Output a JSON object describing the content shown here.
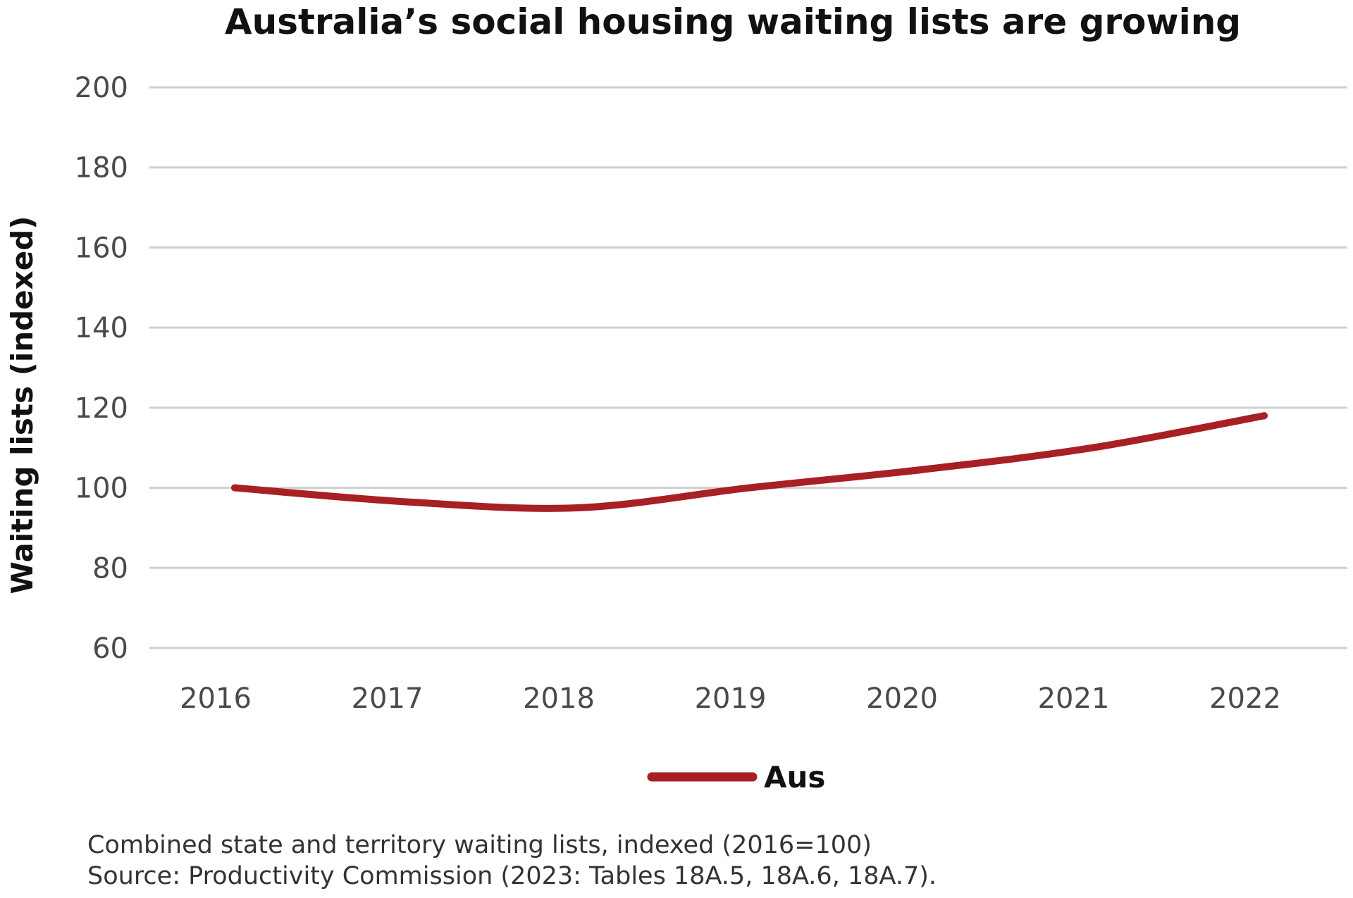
{
  "chart_data": {
    "type": "line",
    "title": "Australia’s social housing waiting lists are growing",
    "ylabel": "Waiting lists  (indexed)",
    "xlabel": "",
    "x": [
      "2016",
      "2017",
      "2018",
      "2019",
      "2020",
      "2021",
      "2022"
    ],
    "ylim": [
      60,
      200
    ],
    "yticks": [
      60,
      80,
      100,
      120,
      140,
      160,
      180,
      200
    ],
    "grid": true,
    "legend_placement": "bottom-center",
    "series": [
      {
        "name": "Aus",
        "color": "#a81f24",
        "values": [
          100,
          96.5,
          95,
          100,
          104.5,
          110,
          118
        ]
      }
    ]
  },
  "notes": {
    "line1": "Combined state and territory waiting lists, indexed (2016=100)",
    "line2": "Source: Productivity Commission (2023: Tables 18A.5, 18A.6, 18A.7)."
  }
}
